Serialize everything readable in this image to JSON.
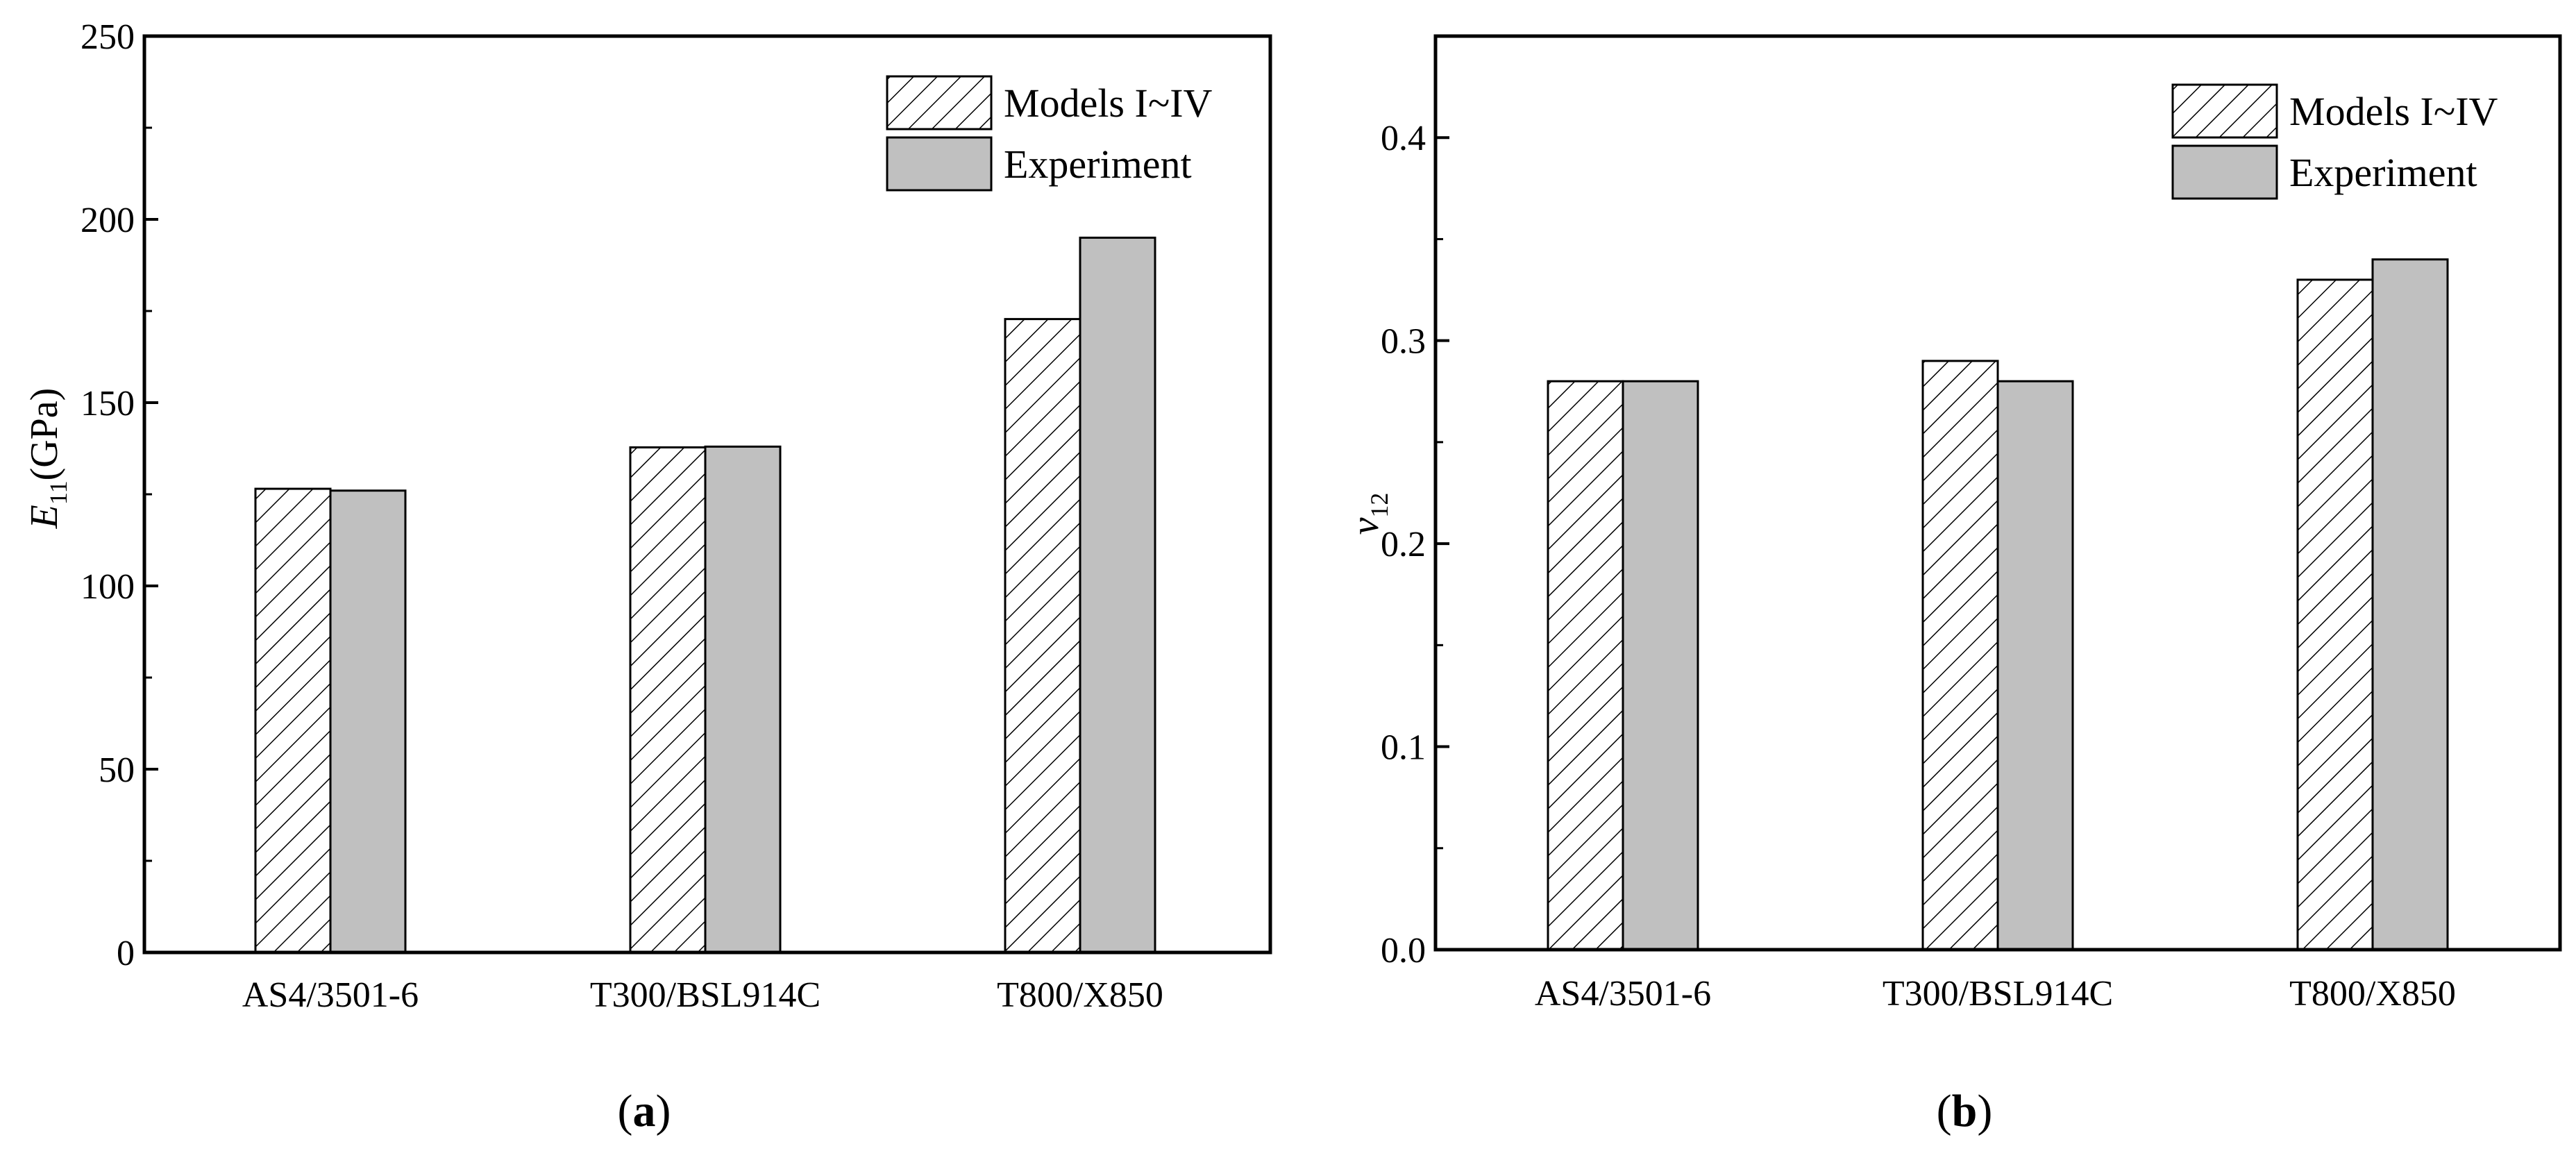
{
  "colors": {
    "hatch_fill": "#ffffff",
    "hatch_line": "#000000",
    "experiment_fill": "#c0c0c0",
    "axis": "#000000"
  },
  "legend": {
    "models_label": "Models I~IV",
    "experiment_label": "Experiment"
  },
  "chart_data": [
    {
      "type": "bar",
      "panel_label": "a",
      "categories": [
        "AS4/3501-6",
        "T300/BSL914C",
        "T800/X850"
      ],
      "series": [
        {
          "name": "Models I~IV",
          "values": [
            126.5,
            137.8,
            172.8
          ],
          "style": "hatched"
        },
        {
          "name": "Experiment",
          "values": [
            126,
            138,
            195
          ],
          "style": "gray"
        }
      ],
      "ylabel_main": "E",
      "ylabel_sub": "11",
      "ylabel_unit": "(GPa)",
      "ylim": [
        0,
        250
      ],
      "yticks": [
        0,
        50,
        100,
        150,
        200,
        250
      ],
      "ytick_labels": [
        "0",
        "50",
        "100",
        "150",
        "200",
        "250"
      ],
      "legend_position": "top-right",
      "grid": false
    },
    {
      "type": "bar",
      "panel_label": "b",
      "categories": [
        "AS4/3501-6",
        "T300/BSL914C",
        "T800/X850"
      ],
      "series": [
        {
          "name": "Models I~IV",
          "values": [
            0.28,
            0.29,
            0.33
          ],
          "style": "hatched"
        },
        {
          "name": "Experiment",
          "values": [
            0.28,
            0.28,
            0.34
          ],
          "style": "gray"
        }
      ],
      "ylabel_main": "v",
      "ylabel_sub": "12",
      "ylim": [
        0,
        0.45
      ],
      "yticks": [
        0,
        0.1,
        0.2,
        0.3,
        0.4
      ],
      "ytick_labels": [
        "0.0",
        "0.1",
        "0.2",
        "0.3",
        "0.4"
      ],
      "legend_position": "top-right",
      "grid": false
    }
  ]
}
